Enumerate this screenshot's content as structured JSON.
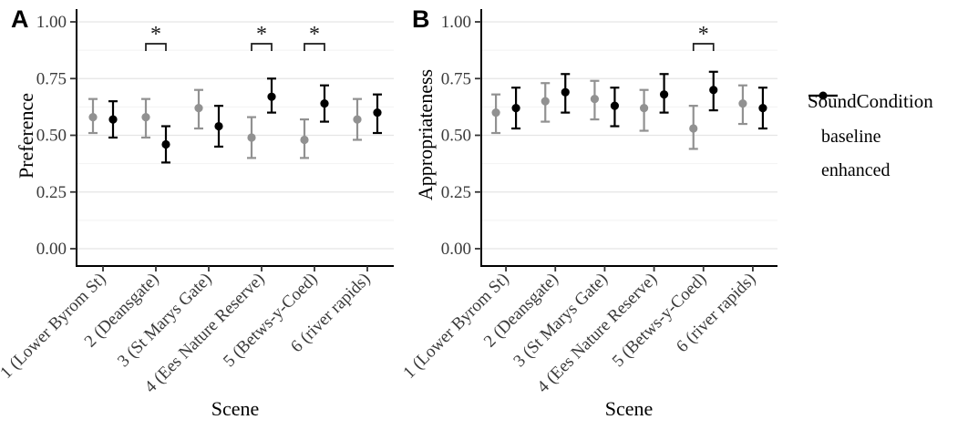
{
  "figure": {
    "tags": [
      "A",
      "B"
    ],
    "background": "#ffffff",
    "legend": {
      "title": "SoundCondition",
      "position": "right",
      "items": [
        {
          "label": "baseline",
          "color": "#919191"
        },
        {
          "label": "enhanced",
          "color": "#000000"
        }
      ]
    },
    "style": {
      "grid_major_color": "#e5e5e5",
      "grid_minor_color": "#f2f2f2",
      "axis_line_color": "#000000",
      "tick_color": "#333333",
      "tick_label_color": "#3a3a3a",
      "significance_color": "#1a1a1a"
    }
  },
  "chart_data": [
    {
      "panel": "A",
      "type": "scatter",
      "subtype": "pointrange-dodged",
      "xlabel": "Scene",
      "ylabel": "Preference",
      "ylim": [
        0,
        1
      ],
      "yticks": [
        0,
        0.25,
        0.5,
        0.75,
        1
      ],
      "ytick_labels": [
        "0.00",
        "0.25",
        "0.50",
        "0.75",
        "1.00"
      ],
      "yminor": [
        0.125,
        0.375,
        0.625,
        0.875
      ],
      "grid": true,
      "categories": [
        "1 (Lower Byrom St)",
        "2 (Deansgate)",
        "3 (St Marys Gate)",
        "4 (Ees Nature Reserve)",
        "5 (Betws-y-Coed)",
        "6 (river rapids)"
      ],
      "series": [
        {
          "name": "baseline",
          "color": "#919191",
          "means": [
            0.58,
            0.58,
            0.62,
            0.49,
            0.48,
            0.57
          ],
          "ci_low": [
            0.51,
            0.49,
            0.53,
            0.4,
            0.4,
            0.48
          ],
          "ci_high": [
            0.66,
            0.66,
            0.7,
            0.58,
            0.57,
            0.66
          ]
        },
        {
          "name": "enhanced",
          "color": "#000000",
          "means": [
            0.57,
            0.46,
            0.54,
            0.67,
            0.64,
            0.6
          ],
          "ci_low": [
            0.49,
            0.38,
            0.45,
            0.6,
            0.56,
            0.51
          ],
          "ci_high": [
            0.65,
            0.54,
            0.63,
            0.75,
            0.72,
            0.68
          ]
        }
      ],
      "significance": [
        {
          "category_index": 1,
          "label": "*"
        },
        {
          "category_index": 3,
          "label": "*"
        },
        {
          "category_index": 4,
          "label": "*"
        }
      ]
    },
    {
      "panel": "B",
      "type": "scatter",
      "subtype": "pointrange-dodged",
      "xlabel": "Scene",
      "ylabel": "Appropriateness",
      "ylim": [
        0,
        1
      ],
      "yticks": [
        0,
        0.25,
        0.5,
        0.75,
        1
      ],
      "ytick_labels": [
        "0.00",
        "0.25",
        "0.50",
        "0.75",
        "1.00"
      ],
      "yminor": [
        0.125,
        0.375,
        0.625,
        0.875
      ],
      "grid": true,
      "categories": [
        "1 (Lower Byrom St)",
        "2 (Deansgate)",
        "3 (St Marys Gate)",
        "4 (Ees Nature Reserve)",
        "5 (Betws-y-Coed)",
        "6 (river rapids)"
      ],
      "series": [
        {
          "name": "baseline",
          "color": "#919191",
          "means": [
            0.6,
            0.65,
            0.66,
            0.62,
            0.53,
            0.64
          ],
          "ci_low": [
            0.51,
            0.56,
            0.57,
            0.52,
            0.44,
            0.55
          ],
          "ci_high": [
            0.68,
            0.73,
            0.74,
            0.7,
            0.63,
            0.72
          ]
        },
        {
          "name": "enhanced",
          "color": "#000000",
          "means": [
            0.62,
            0.69,
            0.63,
            0.68,
            0.7,
            0.62
          ],
          "ci_low": [
            0.53,
            0.6,
            0.54,
            0.6,
            0.61,
            0.53
          ],
          "ci_high": [
            0.71,
            0.77,
            0.71,
            0.77,
            0.78,
            0.71
          ]
        }
      ],
      "significance": [
        {
          "category_index": 4,
          "label": "*"
        }
      ]
    }
  ]
}
